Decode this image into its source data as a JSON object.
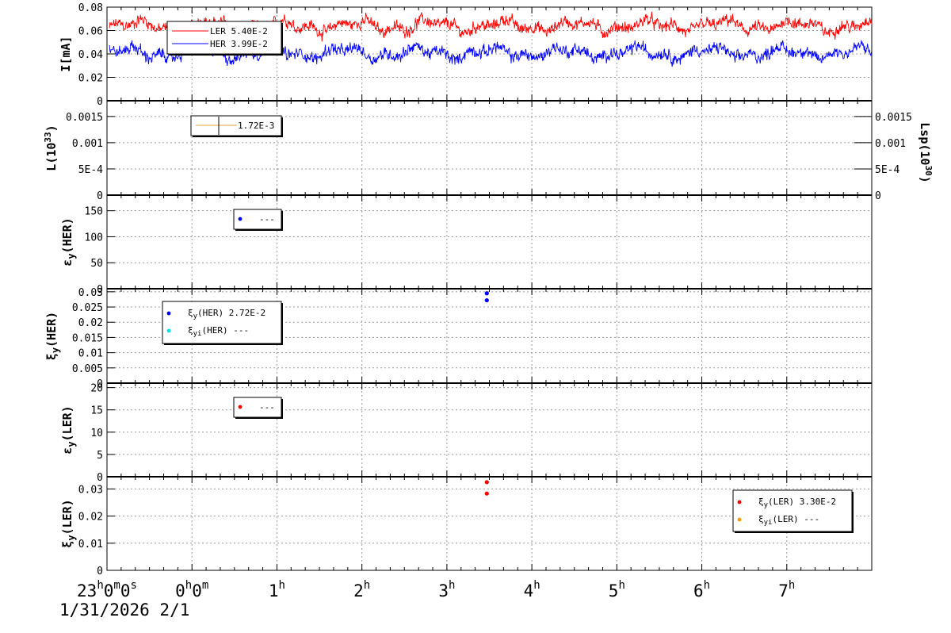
{
  "chart_data": [
    {
      "type": "line",
      "ylabel": "I[mA]",
      "ylim": [
        0,
        0.08
      ],
      "yticks": [
        "0",
        "0.02",
        "0.04",
        "0.06",
        "0.08"
      ],
      "grid": true,
      "series": [
        {
          "name": "LER",
          "color": "#ff0000",
          "legend_value": "5.40E-2",
          "mean": 0.064
        },
        {
          "name": "HER",
          "color": "#0000ff",
          "legend_value": "3.99E-2",
          "mean": 0.041
        }
      ],
      "legend_position": "top-left"
    },
    {
      "type": "line",
      "ylabel": "L(10^33)",
      "ylabel_base": "L(10",
      "ylabel_exp": "33",
      "ylabel_close": ")",
      "y2label_base": "Lsp(10",
      "y2label_exp": "30",
      "y2label_close": ")",
      "ylim": [
        0,
        0.0018
      ],
      "yticks": [
        "0",
        "5E-4",
        "0.001",
        "0.0015"
      ],
      "y2ticks": [
        "0",
        "5E-4",
        "0.001",
        "0.0015"
      ],
      "grid": true,
      "series": [
        {
          "color": "#e8a33a",
          "legend_value": "1.72E-3"
        }
      ],
      "legend_position": "top-left"
    },
    {
      "type": "scatter",
      "ylabel": "εy(HER)",
      "ylim": [
        0,
        180
      ],
      "yticks": [
        "0",
        "50",
        "100",
        "150"
      ],
      "grid": true,
      "series": [
        {
          "color": "#0000ff",
          "legend_value": "---",
          "points": []
        }
      ],
      "legend_position": "top-left"
    },
    {
      "type": "scatter",
      "ylabel": "ξy(HER)",
      "ylim": [
        0,
        0.031
      ],
      "yticks": [
        "0",
        "0.005",
        "0.01",
        "0.015",
        "0.02",
        "0.025",
        "0.03"
      ],
      "grid": true,
      "series": [
        {
          "name": "ξy(HER)",
          "color": "#0000ff",
          "legend_value": "2.72E-2",
          "points": [
            [
              3.47,
              0.0295
            ],
            [
              3.47,
              0.0272
            ]
          ]
        },
        {
          "name": "ξyi(HER)",
          "color": "#00e5e5",
          "legend_value": "---",
          "points": []
        }
      ],
      "legend_position": "top-left"
    },
    {
      "type": "scatter",
      "ylabel": "εy(LER)",
      "ylim": [
        0,
        21
      ],
      "yticks": [
        "0",
        "5",
        "10",
        "15",
        "20"
      ],
      "grid": true,
      "series": [
        {
          "color": "#ff0000",
          "legend_value": "---",
          "points": []
        }
      ],
      "legend_position": "top-left"
    },
    {
      "type": "scatter",
      "ylabel": "ξy(LER)",
      "ylim": [
        0,
        0.0345
      ],
      "yticks": [
        "0",
        "0.01",
        "0.02",
        "0.03"
      ],
      "grid": true,
      "series": [
        {
          "name": "ξy(LER)",
          "color": "#ff0000",
          "legend_value": "3.30E-2",
          "points": [
            [
              3.47,
              0.0325
            ],
            [
              3.47,
              0.0283
            ]
          ]
        },
        {
          "name": "ξyi(LER)",
          "color": "#ff9900",
          "legend_value": "---",
          "points": []
        }
      ],
      "legend_position": "top-right"
    }
  ],
  "x_axis": {
    "range_hours": [
      -1,
      8
    ],
    "ticks": [
      {
        "x": -1,
        "base": "23",
        "sup1": "h",
        "mid1": "0",
        "sup2": "m",
        "mid2": "0",
        "sup3": "s"
      },
      {
        "x": 0,
        "base": "0",
        "sup1": "h",
        "mid1": "0",
        "sup2": "m",
        "mid2": "",
        "sup3": ""
      },
      {
        "x": 1,
        "base": "1",
        "sup1": "h",
        "mid1": "",
        "sup2": "",
        "mid2": "",
        "sup3": ""
      },
      {
        "x": 2,
        "base": "2",
        "sup1": "h",
        "mid1": "",
        "sup2": "",
        "mid2": "",
        "sup3": ""
      },
      {
        "x": 3,
        "base": "3",
        "sup1": "h",
        "mid1": "",
        "sup2": "",
        "mid2": "",
        "sup3": ""
      },
      {
        "x": 4,
        "base": "4",
        "sup1": "h",
        "mid1": "",
        "sup2": "",
        "mid2": "",
        "sup3": ""
      },
      {
        "x": 5,
        "base": "5",
        "sup1": "h",
        "mid1": "",
        "sup2": "",
        "mid2": "",
        "sup3": ""
      },
      {
        "x": 6,
        "base": "6",
        "sup1": "h",
        "mid1": "",
        "sup2": "",
        "mid2": "",
        "sup3": ""
      },
      {
        "x": 7,
        "base": "7",
        "sup1": "h",
        "mid1": "",
        "sup2": "",
        "mid2": "",
        "sup3": ""
      }
    ],
    "date_label": "1/31/2026  2/1"
  }
}
